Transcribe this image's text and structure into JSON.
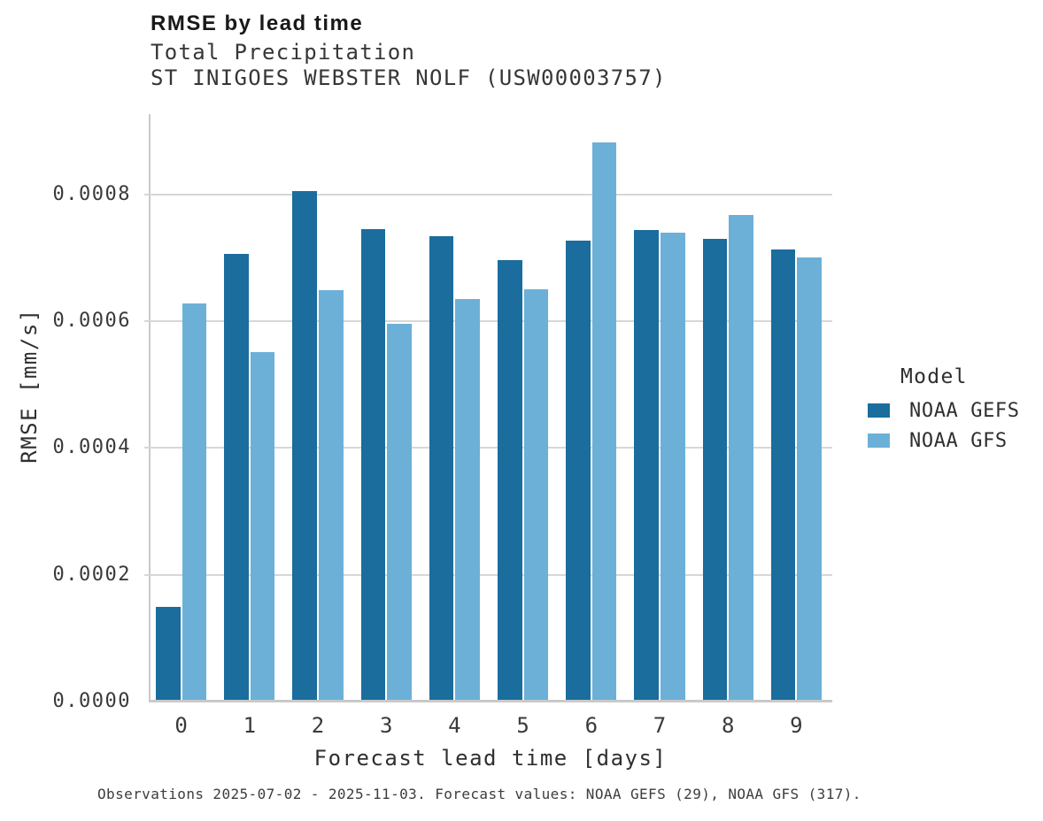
{
  "chart_data": {
    "type": "bar",
    "title": "RMSE by lead time",
    "subtitle": "Total Precipitation",
    "subtitle2": "ST INIGOES WEBSTER NOLF (USW00003757)",
    "xlabel": "Forecast lead time [days]",
    "ylabel": "RMSE [mm/s]",
    "legend_title": "Model",
    "legend_position": "right-center",
    "grid": "horizontal",
    "categories": [
      "0",
      "1",
      "2",
      "3",
      "4",
      "5",
      "6",
      "7",
      "8",
      "9"
    ],
    "series": [
      {
        "name": "NOAA GEFS",
        "color": "#1a6d9c",
        "values": [
          0.000147,
          0.000703,
          0.000803,
          0.000743,
          0.000732,
          0.000694,
          0.000725,
          0.000742,
          0.000728,
          0.000711
        ]
      },
      {
        "name": "NOAA GFS",
        "color": "#6cb0d8",
        "values": [
          0.000626,
          0.000548,
          0.000646,
          0.000593,
          0.000632,
          0.000648,
          0.00088,
          0.000737,
          0.000765,
          0.000698
        ]
      }
    ],
    "yticks": {
      "values": [
        0,
        0.0002,
        0.0004,
        0.0006,
        0.0008
      ],
      "labels": [
        "0.0000",
        "0.0002",
        "0.0004",
        "0.0006",
        "0.0008"
      ]
    },
    "ylim": [
      0,
      0.000927
    ],
    "caption": "Observations 2025-07-02 - 2025-11-03. Forecast values: NOAA GEFS (29), NOAA GFS (317)."
  }
}
